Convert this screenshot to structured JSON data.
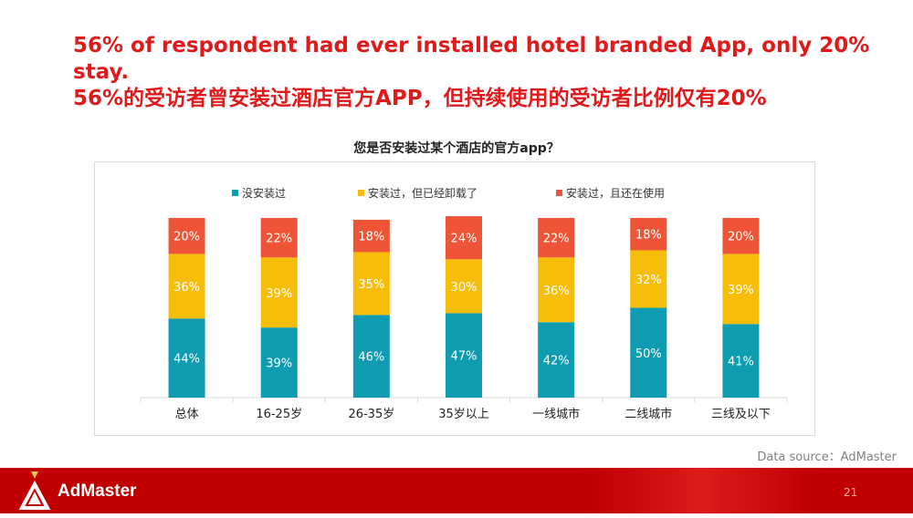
{
  "headline": {
    "line1": "56% of respondent had ever installed hotel branded App, only 20%",
    "line2": "stay.",
    "line3": "56%的受访者曾安装过酒店官方APP，但持续使用的受访者比例仅有20%"
  },
  "source": "Data source：AdMaster",
  "footer": {
    "logo_text": "AdMaster",
    "page_number": "21"
  },
  "colors": {
    "accent": "#e0191b",
    "footer": "#c00000"
  },
  "chart_data": {
    "type": "bar",
    "stacked": true,
    "percent": true,
    "title": "您是否安装过某个酒店的官方app？",
    "legend_position": "top",
    "categories": [
      "总体",
      "16-25岁",
      "26-35岁",
      "35岁以上",
      "一线城市",
      "二线城市",
      "三线及以下"
    ],
    "series": [
      {
        "name": "没安装过",
        "color": "#0f9bb0",
        "values": [
          44,
          39,
          46,
          47,
          42,
          50,
          41
        ]
      },
      {
        "name": "安装过，但已经卸载了",
        "color": "#f7bd0b",
        "values": [
          36,
          39,
          35,
          30,
          36,
          32,
          39
        ]
      },
      {
        "name": "安装过，且还在使用",
        "color": "#ee5537",
        "values": [
          20,
          22,
          18,
          24,
          22,
          18,
          20
        ]
      }
    ]
  }
}
